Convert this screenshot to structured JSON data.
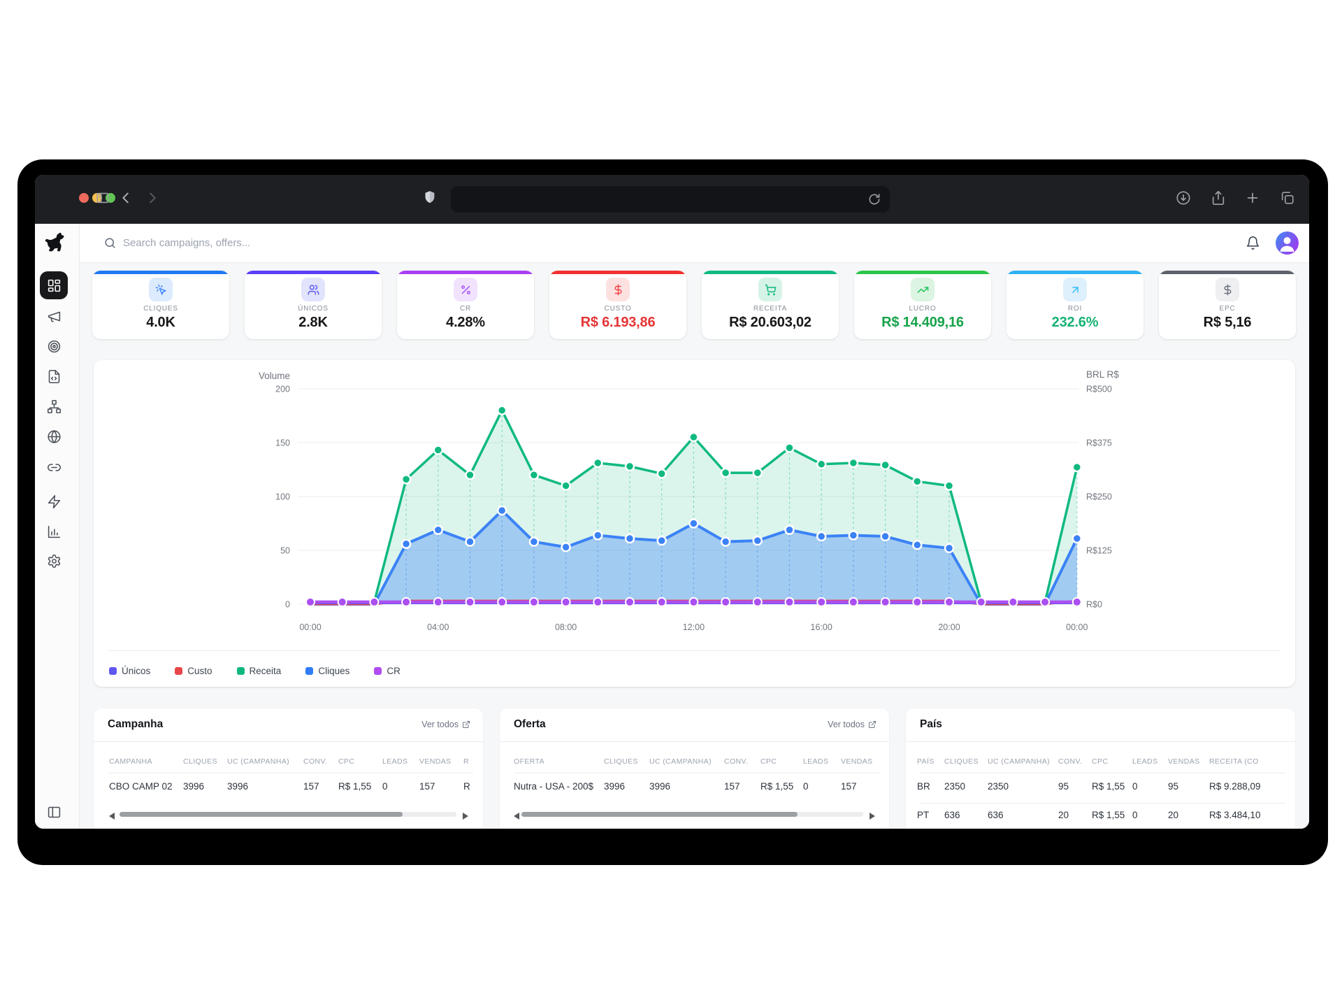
{
  "topbar": {
    "search_placeholder": "Search campaigns, offers..."
  },
  "kpis": [
    {
      "label": "CLIQUES",
      "value": "4.0K",
      "accent": "#2079f2",
      "icon": "click",
      "icon_bg": "#dcebfd",
      "icon_color": "#3b82f6",
      "value_color": "#17181a"
    },
    {
      "label": "ÚNICOS",
      "value": "2.8K",
      "accent": "#5b3ef5",
      "icon": "users",
      "icon_bg": "#e2e3fd",
      "icon_color": "#5c5cf0",
      "value_color": "#17181a"
    },
    {
      "label": "CR",
      "value": "4.28%",
      "accent": "#a93ef2",
      "icon": "percent",
      "icon_bg": "#f1e3fd",
      "icon_color": "#a855f7",
      "value_color": "#17181a"
    },
    {
      "label": "CUSTO",
      "value": "R$ 6.193,86",
      "accent": "#f23030",
      "icon": "dollar",
      "icon_bg": "#fde1e1",
      "icon_color": "#ef4444",
      "value_color": "#e53535"
    },
    {
      "label": "RECEITA",
      "value": "R$ 20.603,02",
      "accent": "#10b981",
      "icon": "cart",
      "icon_bg": "#d6f3e7",
      "icon_color": "#10b981",
      "value_color": "#17181a"
    },
    {
      "label": "LUCRO",
      "value": "R$ 14.409,16",
      "accent": "#2bc54b",
      "icon": "trend",
      "icon_bg": "#dcf4e2",
      "icon_color": "#22c55e",
      "value_color": "#17a34a"
    },
    {
      "label": "ROI",
      "value": "232.6%",
      "accent": "#2db1f0",
      "icon": "arrowUpRight",
      "icon_bg": "#ddf0fc",
      "icon_color": "#38bdf8",
      "value_color": "#17b274"
    },
    {
      "label": "EPC",
      "value": "R$ 5,16",
      "accent": "#5c616b",
      "icon": "dollar",
      "icon_bg": "#efeff2",
      "icon_color": "#6b7280",
      "value_color": "#17181a"
    }
  ],
  "chart_data": {
    "type": "area",
    "title_left": "Volume",
    "title_right": "BRL R$",
    "left_ticks": [
      0,
      50,
      100,
      150,
      200
    ],
    "right_tick_labels": [
      "R$0",
      "R$125",
      "R$250",
      "R$375",
      "R$500"
    ],
    "x_tick_labels": [
      "00:00",
      "04:00",
      "08:00",
      "12:00",
      "16:00",
      "20:00",
      "00:00"
    ],
    "right_axis_scale": 2.5,
    "ylim_left": [
      0,
      200
    ],
    "grid": true,
    "legend_position": "bottom",
    "legend": [
      {
        "label": "Únicos",
        "color": "#6158f0"
      },
      {
        "label": "Custo",
        "color": "#e8464a"
      },
      {
        "label": "Receita",
        "color": "#0fb77e"
      },
      {
        "label": "Cliques",
        "color": "#2f7cf6"
      },
      {
        "label": "CR",
        "color": "#b04cf0"
      }
    ],
    "series": [
      {
        "name": "Receita",
        "axis": "right",
        "unit": "BRL",
        "values": [
          5,
          5,
          5,
          290,
          358,
          300,
          450,
          300,
          275,
          328,
          320,
          303,
          388,
          305,
          305,
          363,
          325,
          328,
          323,
          285,
          275,
          5,
          5,
          5,
          318
        ]
      },
      {
        "name": "Cliques",
        "axis": "left",
        "unit": "volume",
        "values": [
          0,
          0,
          0,
          56,
          69,
          58,
          87,
          58,
          53,
          64,
          61,
          59,
          75,
          58,
          59,
          69,
          63,
          64,
          63,
          55,
          52,
          0,
          0,
          0,
          61
        ]
      },
      {
        "name": "Custo",
        "axis": "right",
        "unit": "BRL",
        "values": [
          0,
          0,
          0,
          8,
          8,
          8,
          8,
          8,
          8,
          8,
          8,
          8,
          8,
          8,
          8,
          8,
          8,
          8,
          8,
          8,
          8,
          0,
          0,
          0,
          8
        ]
      },
      {
        "name": "Únicos",
        "axis": "left",
        "unit": "volume",
        "values": [
          1,
          1,
          1,
          1,
          1,
          1,
          1,
          1,
          1,
          1,
          1,
          1,
          1,
          1,
          1,
          1,
          1,
          1,
          1,
          1,
          1,
          1,
          1,
          1,
          1
        ]
      },
      {
        "name": "CR",
        "axis": "left",
        "unit": "volume",
        "values": [
          2,
          2,
          2,
          2,
          2,
          2,
          2,
          2,
          2,
          2,
          2,
          2,
          2,
          2,
          2,
          2,
          2,
          2,
          2,
          2,
          2,
          2,
          2,
          2,
          2
        ]
      }
    ]
  },
  "tables": [
    {
      "title": "Campanha",
      "link": "Ver todos",
      "columns": [
        "CAMPANHA",
        "CLIQUES",
        "UC (CAMPANHA)",
        "CONV.",
        "CPC",
        "LEADS",
        "VENDAS",
        "R"
      ],
      "rows": [
        [
          "CBO CAMP 02",
          "3996",
          "3996",
          "157",
          "R$ 1,55",
          "0",
          "157",
          "R"
        ]
      ]
    },
    {
      "title": "Oferta",
      "link": "Ver todos",
      "columns": [
        "OFERTA",
        "CLIQUES",
        "UC (CAMPANHA)",
        "CONV.",
        "CPC",
        "LEADS",
        "VENDAS"
      ],
      "rows": [
        [
          "Nutra - USA - 200$",
          "3996",
          "3996",
          "157",
          "R$ 1,55",
          "0",
          "157"
        ]
      ]
    },
    {
      "title": "País",
      "link": "",
      "columns": [
        "PAÍS",
        "CLIQUES",
        "UC (CAMPANHA)",
        "CONV.",
        "CPC",
        "LEADS",
        "VENDAS",
        "RECEITA (CO"
      ],
      "rows": [
        [
          "BR",
          "2350",
          "2350",
          "95",
          "R$ 1,55",
          "0",
          "95",
          "R$ 9.288,09"
        ],
        [
          "PT",
          "636",
          "636",
          "20",
          "R$ 1,55",
          "0",
          "20",
          "R$ 3.484,10"
        ]
      ]
    }
  ]
}
